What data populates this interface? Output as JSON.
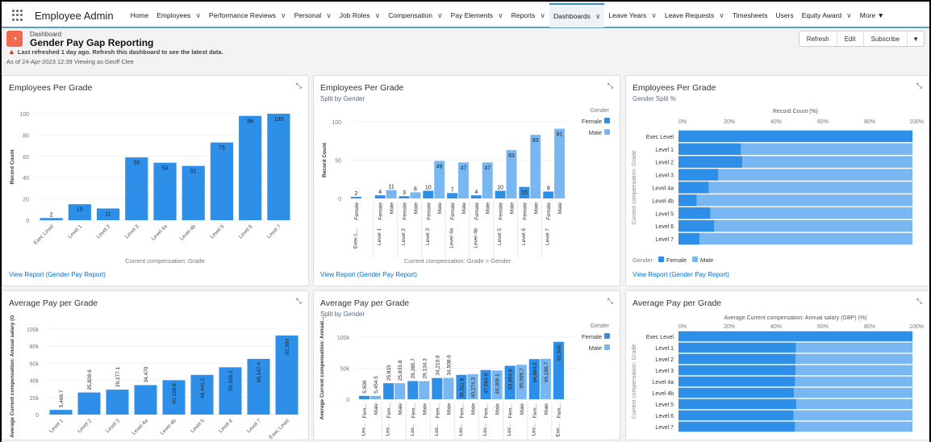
{
  "nav": {
    "app_name": "Employee Admin",
    "items": [
      {
        "label": "Home",
        "chevron": false
      },
      {
        "label": "Employees",
        "chevron": true
      },
      {
        "label": "Performance Reviews",
        "chevron": true
      },
      {
        "label": "Personal",
        "chevron": true
      },
      {
        "label": "Job Roles",
        "chevron": true
      },
      {
        "label": "Compensation",
        "chevron": true
      },
      {
        "label": "Pay Elements",
        "chevron": true
      },
      {
        "label": "Reports",
        "chevron": true
      },
      {
        "label": "Dashboards",
        "chevron": true,
        "active": true
      },
      {
        "label": "Leave Years",
        "chevron": true
      },
      {
        "label": "Leave Requests",
        "chevron": true
      },
      {
        "label": "Timesheets",
        "chevron": false
      },
      {
        "label": "Users",
        "chevron": false
      },
      {
        "label": "Equity Award",
        "chevron": true
      },
      {
        "label": "More ▼",
        "chevron": false
      }
    ]
  },
  "header": {
    "type_label": "Dashboard",
    "title": "Gender Pay Gap Reporting",
    "warning": "Last refreshed 1 day ago. Refresh this dashboard to see the latest data.",
    "as_of": "As of 24-Apr-2023 12:39 Viewing as Geoff Clee",
    "buttons": [
      "Refresh",
      "Edit",
      "Subscribe",
      "▼"
    ]
  },
  "colors": {
    "female": "#2e8fe8",
    "male": "#78b7f2",
    "link": "#0070d2",
    "accent": "#3b8fc2"
  },
  "view_report": "View Report (Gender Pay Report)",
  "chart_data": [
    {
      "type": "bar",
      "title": "Employees Per Grade",
      "subtitle": "",
      "xlabel": "Current compensation: Grade",
      "ylabel": "Record Count",
      "ylim": [
        0,
        100
      ],
      "yticks": [
        0,
        20,
        40,
        60,
        80,
        100
      ],
      "categories": [
        "Exec Level",
        "Level 1",
        "Level 2",
        "Level 3",
        "Level 4a",
        "Level 4b",
        "Level 5",
        "Level 6",
        "Level 7"
      ],
      "series": [
        {
          "values": [
            2,
            15,
            11,
            59,
            54,
            51,
            73,
            98,
            100
          ],
          "labels": [
            "2",
            "15",
            "11",
            "59",
            "54",
            "51",
            "73",
            "98",
            "100"
          ]
        }
      ]
    },
    {
      "type": "bar",
      "title": "Employees Per Grade",
      "subtitle": "Split by Gender",
      "xlabel": "Current compensation: Grade  >  Gender",
      "ylabel": "Record Count",
      "ylim": [
        0,
        100
      ],
      "yticks": [
        0,
        50,
        100
      ],
      "legend_title": "Gender",
      "legend": "right",
      "categories": [
        "Exec L...",
        "Level 1",
        "Level 2",
        "Level 3",
        "Level 4a",
        "Level 4b",
        "Level 5",
        "Level 6",
        "Level 7"
      ],
      "series": [
        {
          "name": "Female",
          "values": [
            2,
            4,
            3,
            10,
            7,
            4,
            10,
            15,
            9
          ],
          "labels": [
            "2",
            "4",
            "3",
            "10",
            "7",
            "4",
            "10",
            "15",
            "9"
          ]
        },
        {
          "name": "Male",
          "values": [
            null,
            11,
            8,
            49,
            47,
            47,
            63,
            83,
            91
          ],
          "labels": [
            "",
            "11",
            "8",
            "49",
            "47",
            "47",
            "63",
            "83",
            "91"
          ]
        }
      ]
    },
    {
      "type": "bar",
      "orientation": "horizontal",
      "stacked_percent": true,
      "title": "Employees Per Grade",
      "subtitle": "Gender Split %",
      "xlabel": "Record Count (%)",
      "ylabel": "Current compensation: Grade",
      "xticks": [
        "0%",
        "20%",
        "40%",
        "60%",
        "80%",
        "100%"
      ],
      "legend_title": "Gender",
      "legend": "bottom",
      "categories": [
        "Exec Level",
        "Level 1",
        "Level 2",
        "Level 3",
        "Level 4a",
        "Level 4b",
        "Level 5",
        "Level 6",
        "Level 7"
      ],
      "series": [
        {
          "name": "Female",
          "values": [
            100,
            26.7,
            27.3,
            16.9,
            13,
            7.8,
            13.7,
            15.3,
            9
          ]
        },
        {
          "name": "Male",
          "values": [
            0,
            73.3,
            72.7,
            83.1,
            87,
            92.2,
            86.3,
            84.7,
            91
          ]
        }
      ]
    },
    {
      "type": "bar",
      "title": "Average Pay per Grade",
      "subtitle": "",
      "xlabel": "",
      "ylabel": "Average Current compensation: Annual salary (GBP)",
      "ylim": [
        0,
        100000
      ],
      "yticks": [
        0,
        20000,
        40000,
        60000,
        80000,
        100000
      ],
      "ytick_labels": [
        "0",
        "20k",
        "40k",
        "60k",
        "80k",
        "100k"
      ],
      "categories": [
        "Level 1",
        "Level 2",
        "Level 3",
        "Level 4a",
        "Level 4b",
        "Level 5",
        "Level 6",
        "Level 7",
        "Exec Level"
      ],
      "series": [
        {
          "values": [
            5466.7,
            25828.6,
            29177.1,
            34470,
            40198.8,
            46441.2,
            55328.2,
            65147.4,
            92500
          ],
          "labels": [
            "5,466.7",
            "25,828.6",
            "29,177.1",
            "34,470",
            "40,198.8",
            "46,441.2",
            "55,328.2",
            "65,147.4",
            "92,500"
          ]
        }
      ]
    },
    {
      "type": "bar",
      "title": "Average Pay per Grade",
      "subtitle": "Split by Gender",
      "xlabel": "",
      "ylabel": "Average Current compensation: Annual...",
      "ylim": [
        0,
        100000
      ],
      "yticks": [
        0,
        50000,
        100000
      ],
      "ytick_labels": [
        "0",
        "50k",
        "100k"
      ],
      "legend_title": "Gender",
      "legend": "right",
      "categories": [
        "Lev...",
        "Lev...",
        "Lev...",
        "Lev...",
        "Lev...",
        "Lev...",
        "Lev...",
        "Lev...",
        "Exe..."
      ],
      "sub_labels": [
        "Fem...",
        "Male"
      ],
      "series": [
        {
          "name": "Female",
          "values": [
            5500,
            25815,
            29285.7,
            34210.9,
            39311.8,
            47084.9,
            53894.8,
            64684.2,
            92500
          ],
          "labels": [
            "5,500",
            "25,815",
            "29,285.7",
            "34,210.9",
            "39,311.8",
            "47,084.9",
            "53,894.8",
            "64,684.2",
            "92,500"
          ]
        },
        {
          "name": "Male",
          "values": [
            5454.5,
            25833.8,
            29134.3,
            34508.6,
            40274.3,
            46309.1,
            55595.7,
            65186.7,
            null
          ],
          "labels": [
            "5,454.5",
            "25,833.8",
            "29,134.3",
            "34,508.6",
            "40,274.3",
            "46,309.1",
            "55,595.7",
            "65,186.7",
            ""
          ]
        }
      ]
    },
    {
      "type": "bar",
      "orientation": "horizontal",
      "stacked_percent": true,
      "title": "Average Pay per Grade",
      "subtitle": "",
      "xlabel": "Average Current compensation: Annual salary (GBP) (%)",
      "ylabel": "Current compensation: Grade",
      "xticks": [
        "0%",
        "20%",
        "40%",
        "60%",
        "80%",
        "100%"
      ],
      "categories": [
        "Exec Level",
        "Level 1",
        "Level 2",
        "Level 3",
        "Level 4a",
        "Level 4b",
        "Level 5",
        "Level 6",
        "Level 7"
      ],
      "series": [
        {
          "name": "Female",
          "values": [
            100,
            50.2,
            50,
            50.1,
            49.8,
            49.4,
            50.4,
            49.2,
            49.8
          ]
        },
        {
          "name": "Male",
          "values": [
            0,
            49.8,
            50,
            49.9,
            50.2,
            50.6,
            49.6,
            50.8,
            50.2
          ]
        }
      ]
    }
  ]
}
